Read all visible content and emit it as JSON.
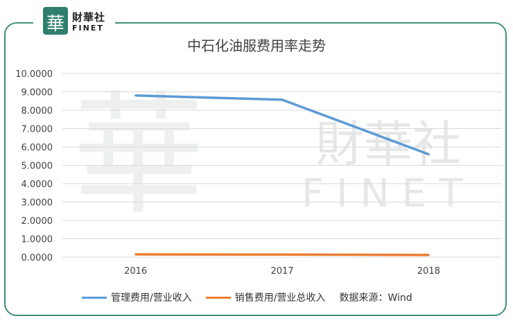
{
  "brand": {
    "logo_char": "華",
    "name_cn": "財華社",
    "name_en": "FINET",
    "watermark_cn": "財華社",
    "watermark_en": "FINET"
  },
  "chart_data": {
    "type": "line",
    "title": "中石化油服费用率走势",
    "categories": [
      "2016",
      "2017",
      "2018"
    ],
    "series": [
      {
        "name": "管理费用/营业收入",
        "color": "#5b9bd5",
        "values": [
          8.8,
          8.57,
          5.6
        ]
      },
      {
        "name": "销售费用/营业总收入",
        "color": "#ed7d31",
        "values": [
          0.15,
          0.14,
          0.12
        ]
      }
    ],
    "ylim": [
      0,
      10
    ],
    "yticks": [
      "0.0000",
      "1.0000",
      "2.0000",
      "3.0000",
      "4.0000",
      "5.0000",
      "6.0000",
      "7.0000",
      "8.0000",
      "9.0000",
      "10.0000"
    ],
    "grid": true,
    "legend_position": "bottom",
    "source_note": "数据来源：Wind"
  }
}
